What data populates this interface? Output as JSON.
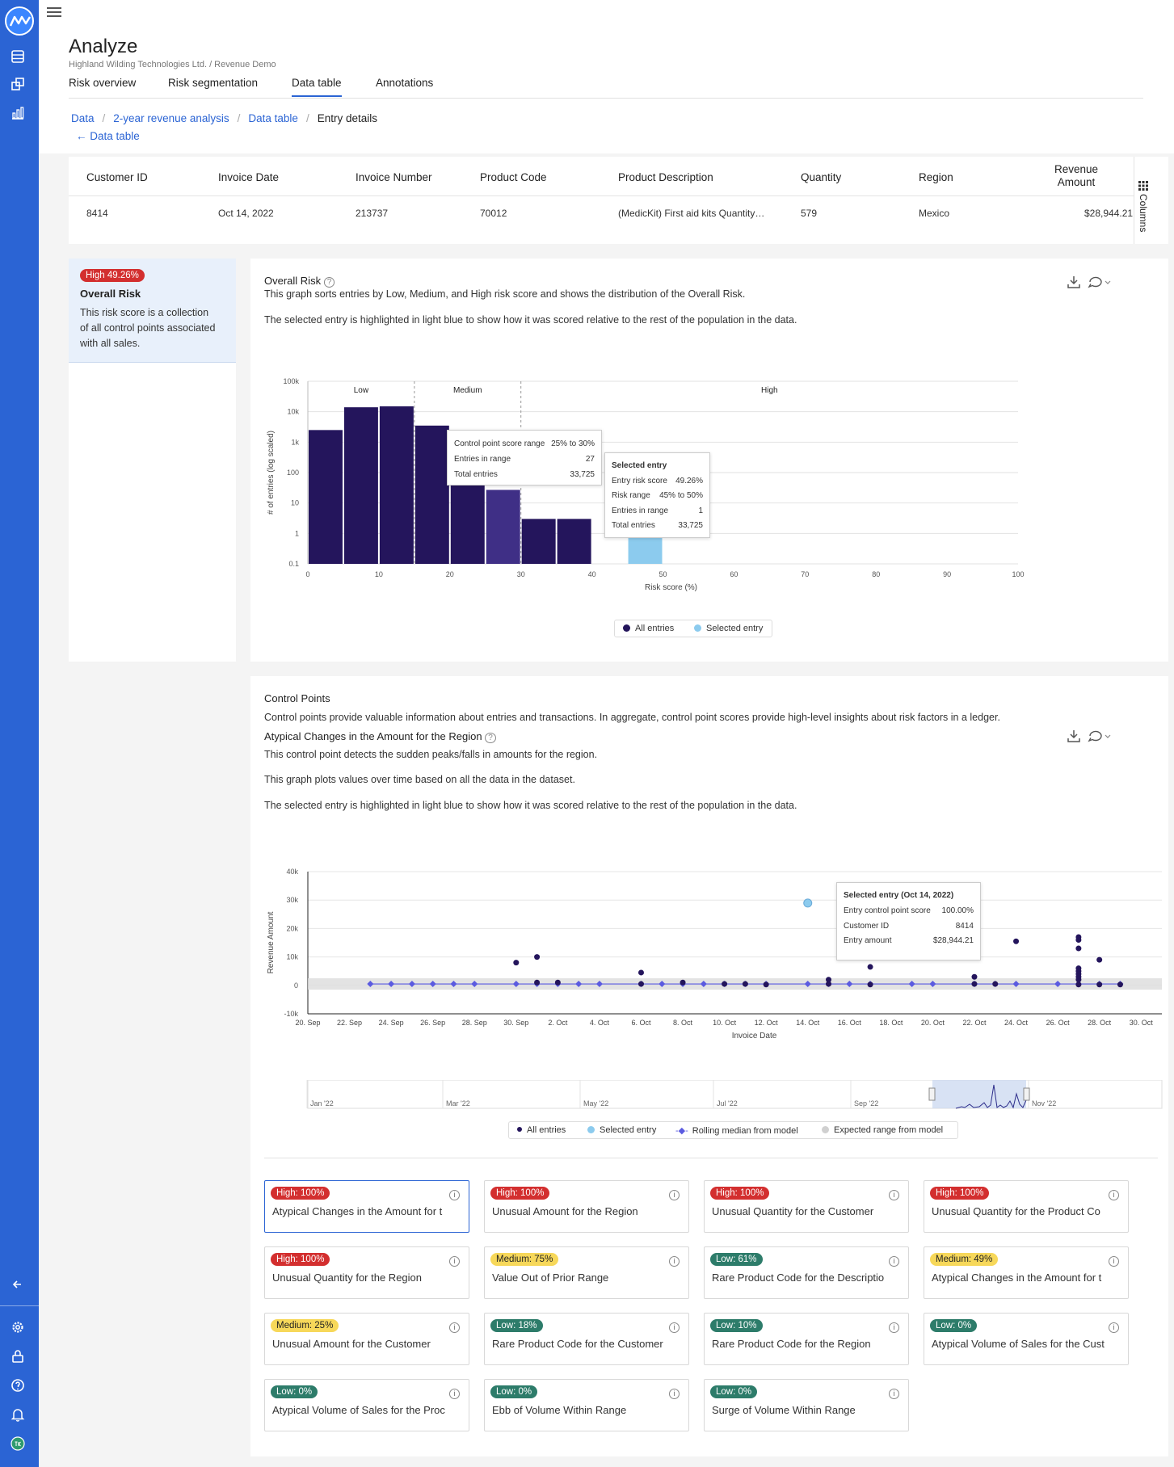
{
  "colors": {
    "nav": "#2b64d4",
    "high": "#d32f2f",
    "medium": "#f7d85a",
    "low": "#2d7c6a",
    "bars": "#24155c",
    "selected": "#8ccbee"
  },
  "header": {
    "title": "Analyze",
    "subtitle": "Highland Wilding Technologies Ltd. / Revenue Demo",
    "tabs": [
      "Risk overview",
      "Risk segmentation",
      "Data table",
      "Annotations"
    ],
    "active_tab": "Data table"
  },
  "breadcrumb": [
    "Data",
    "2-year revenue analysis",
    "Data table",
    "Entry details"
  ],
  "back_link": "Data table",
  "entry_table": {
    "columns": [
      "Customer ID",
      "Invoice Date",
      "Invoice Number",
      "Product Code",
      "Product Description",
      "Quantity",
      "Region",
      "Revenue",
      "Amount"
    ],
    "row": {
      "customer_id": "8414",
      "invoice_date": "Oct 14, 2022",
      "invoice_number": "213737",
      "product_code": "70012",
      "product_description": "(MedicKit) First aid kits Quantity…",
      "quantity": "579",
      "region": "Mexico",
      "revenue_amount": "$28,944.21"
    },
    "columns_toggle": "Columns"
  },
  "overall_risk_panel": {
    "badge": "High 49.26%",
    "title": "Overall Risk",
    "description_lines": [
      "This risk score is a collection",
      "of all control points associated",
      "with all sales."
    ]
  },
  "overall_risk_chart": {
    "title": "Overall Risk",
    "description": "This graph sorts entries by Low, Medium, and High risk score and shows the distribution of the Overall Risk.",
    "note": "The selected entry is highlighted in light blue to show how it was scored relative to the rest of the population in the data.",
    "tooltip_range": {
      "label1": "Control point score range",
      "value1": "25% to 30%",
      "label2": "Entries in range",
      "value2": "27",
      "label3": "Total entries",
      "value3": "33,725"
    },
    "tooltip_selected": {
      "heading": "Selected entry",
      "label1": "Entry risk score",
      "value1": "49.26%",
      "label2": "Risk range",
      "value2": "45% to 50%",
      "label3": "Entries in range",
      "value3": "1",
      "label4": "Total entries",
      "value4": "33,725"
    },
    "legend": [
      "All entries",
      "Selected entry"
    ]
  },
  "control_points": {
    "title": "Control Points",
    "description": "Control points provide valuable information about entries and transactions. In aggregate, control point scores provide high-level insights about risk factors in a ledger.",
    "subtitle": "Atypical Changes in the Amount for the Region",
    "desc1": "This control point detects the sudden peaks/falls in amounts for the region.",
    "desc2": "This graph plots values over time based on all the data in the dataset.",
    "desc3": "The selected entry is highlighted in light blue to show how it was scored relative to the rest of the population in the data.",
    "tooltip": {
      "heading": "Selected entry (Oct 14, 2022)",
      "label1": "Entry control point score",
      "value1": "100.00%",
      "label2": "Customer ID",
      "value2": "8414",
      "label3": "Entry amount",
      "value3": "$28,944.21"
    },
    "navigator_labels": [
      "Jan '22",
      "Mar '22",
      "May '22",
      "Jul '22",
      "Sep '22",
      "Nov '22"
    ],
    "legend": [
      "All entries",
      "Selected entry",
      "Rolling median from model",
      "Expected range from model"
    ],
    "tiles": [
      {
        "level": "high",
        "badge": "High: 100%",
        "name": "Atypical Changes in the Amount for t"
      },
      {
        "level": "high",
        "badge": "High: 100%",
        "name": "Unusual Amount for the Region"
      },
      {
        "level": "high",
        "badge": "High: 100%",
        "name": "Unusual Quantity for the Customer"
      },
      {
        "level": "high",
        "badge": "High: 100%",
        "name": "Unusual Quantity for the Product Co"
      },
      {
        "level": "high",
        "badge": "High: 100%",
        "name": "Unusual Quantity for the Region"
      },
      {
        "level": "med",
        "badge": "Medium: 75%",
        "name": "Value Out of Prior Range"
      },
      {
        "level": "low",
        "badge": "Low: 61%",
        "name": "Rare Product Code for the Descriptio"
      },
      {
        "level": "med",
        "badge": "Medium: 49%",
        "name": "Atypical Changes in the Amount for t"
      },
      {
        "level": "med",
        "badge": "Medium: 25%",
        "name": "Unusual Amount for the Customer"
      },
      {
        "level": "low",
        "badge": "Low: 18%",
        "name": "Rare Product Code for the Customer"
      },
      {
        "level": "low",
        "badge": "Low: 10%",
        "name": "Rare Product Code for the Region"
      },
      {
        "level": "low",
        "badge": "Low: 0%",
        "name": "Atypical Volume of Sales for the Cust"
      },
      {
        "level": "low",
        "badge": "Low: 0%",
        "name": "Atypical Volume of Sales for the Proc"
      },
      {
        "level": "low",
        "badge": "Low: 0%",
        "name": "Ebb of Volume Within Range"
      },
      {
        "level": "low",
        "badge": "Low: 0%",
        "name": "Surge of Volume Within Range"
      }
    ]
  },
  "chart_data": [
    {
      "type": "bar",
      "title": "",
      "xlabel": "Risk score (%)",
      "ylabel": "# of entries (log scaled)",
      "yscale": "log",
      "ylim": [
        0.1,
        100000
      ],
      "xlim": [
        0,
        100
      ],
      "y_ticks": [
        "100k",
        "10k",
        "1k",
        "100",
        "10",
        "1",
        "0.1"
      ],
      "x_ticks": [
        "0",
        "10",
        "20",
        "30",
        "40",
        "50",
        "60",
        "70",
        "80",
        "90",
        "100"
      ],
      "bands": [
        "Low",
        "Medium",
        "High"
      ],
      "band_edges": [
        0,
        15,
        30,
        100
      ],
      "bins": [
        {
          "from": 0,
          "to": 5,
          "value": 2500
        },
        {
          "from": 5,
          "to": 10,
          "value": 14000
        },
        {
          "from": 10,
          "to": 15,
          "value": 15000
        },
        {
          "from": 15,
          "to": 20,
          "value": 3500
        },
        {
          "from": 20,
          "to": 25,
          "value": 120
        },
        {
          "from": 25,
          "to": 30,
          "value": 27
        },
        {
          "from": 30,
          "to": 35,
          "value": 3
        },
        {
          "from": 35,
          "to": 40,
          "value": 3
        }
      ],
      "selected_bin": {
        "from": 45,
        "to": 50,
        "value": 1
      },
      "highlight_bin_index": 5,
      "grid": true,
      "legend": "bottom-center"
    },
    {
      "type": "scatter",
      "title": "",
      "xlabel": "Invoice Date",
      "ylabel": "Revenue Amount",
      "ylim": [
        -10000,
        40000
      ],
      "y_ticks": [
        "40k",
        "30k",
        "20k",
        "10k",
        "0",
        "-10k"
      ],
      "x_ticks": [
        "20. Sep",
        "22. Sep",
        "24. Sep",
        "26. Sep",
        "28. Sep",
        "30. Sep",
        "2. Oct",
        "4. Oct",
        "6. Oct",
        "8. Oct",
        "10. Oct",
        "12. Oct",
        "14. Oct",
        "16. Oct",
        "18. Oct",
        "20. Oct",
        "22. Oct",
        "24. Oct",
        "26. Oct",
        "28. Oct",
        "30. Oct"
      ],
      "x_range": [
        "2022-09-20",
        "2022-10-31"
      ],
      "points": [
        {
          "date": "2022-09-30",
          "amount": 8000
        },
        {
          "date": "2022-10-01",
          "amount": 10000
        },
        {
          "date": "2022-10-06",
          "amount": 4500
        },
        {
          "date": "2022-10-17",
          "amount": 6500
        },
        {
          "date": "2022-10-24",
          "amount": 15500
        },
        {
          "date": "2022-10-27",
          "amount": 17000
        },
        {
          "date": "2022-10-27",
          "amount": 16000
        },
        {
          "date": "2022-10-27",
          "amount": 13000
        },
        {
          "date": "2022-10-28",
          "amount": 9000
        },
        {
          "date": "2022-10-27",
          "amount": 6000
        },
        {
          "date": "2022-10-27",
          "amount": 5000
        },
        {
          "date": "2022-10-27",
          "amount": 4000
        },
        {
          "date": "2022-10-27",
          "amount": 3000
        },
        {
          "date": "2022-10-27",
          "amount": 2000
        },
        {
          "date": "2022-10-22",
          "amount": 3000
        },
        {
          "date": "2022-10-15",
          "amount": 2000
        },
        {
          "date": "2022-10-01",
          "amount": 1000
        },
        {
          "date": "2022-10-02",
          "amount": 1000
        },
        {
          "date": "2022-10-06",
          "amount": 500
        },
        {
          "date": "2022-10-08",
          "amount": 1000
        },
        {
          "date": "2022-10-10",
          "amount": 500
        },
        {
          "date": "2022-10-11",
          "amount": 500
        },
        {
          "date": "2022-10-12",
          "amount": 300
        },
        {
          "date": "2022-10-15",
          "amount": 500
        },
        {
          "date": "2022-10-17",
          "amount": 300
        },
        {
          "date": "2022-10-22",
          "amount": 500
        },
        {
          "date": "2022-10-23",
          "amount": 500
        },
        {
          "date": "2022-10-27",
          "amount": 300
        },
        {
          "date": "2022-10-28",
          "amount": 300
        },
        {
          "date": "2022-10-29",
          "amount": 300
        }
      ],
      "selected_point": {
        "date": "2022-10-14",
        "amount": 28944.21
      },
      "rolling_median_dates": [
        "2022-09-23",
        "2022-09-24",
        "2022-09-25",
        "2022-09-26",
        "2022-09-27",
        "2022-09-28",
        "2022-09-30",
        "2022-10-01",
        "2022-10-02",
        "2022-10-03",
        "2022-10-04",
        "2022-10-06",
        "2022-10-07",
        "2022-10-08",
        "2022-10-09",
        "2022-10-10",
        "2022-10-11",
        "2022-10-12",
        "2022-10-14",
        "2022-10-15",
        "2022-10-16",
        "2022-10-17",
        "2022-10-19",
        "2022-10-20",
        "2022-10-22",
        "2022-10-23",
        "2022-10-24",
        "2022-10-26",
        "2022-10-27",
        "2022-10-28",
        "2022-10-29"
      ],
      "rolling_median_value": 500,
      "expected_range": [
        -1500,
        2500
      ],
      "legend": "bottom-center"
    }
  ]
}
